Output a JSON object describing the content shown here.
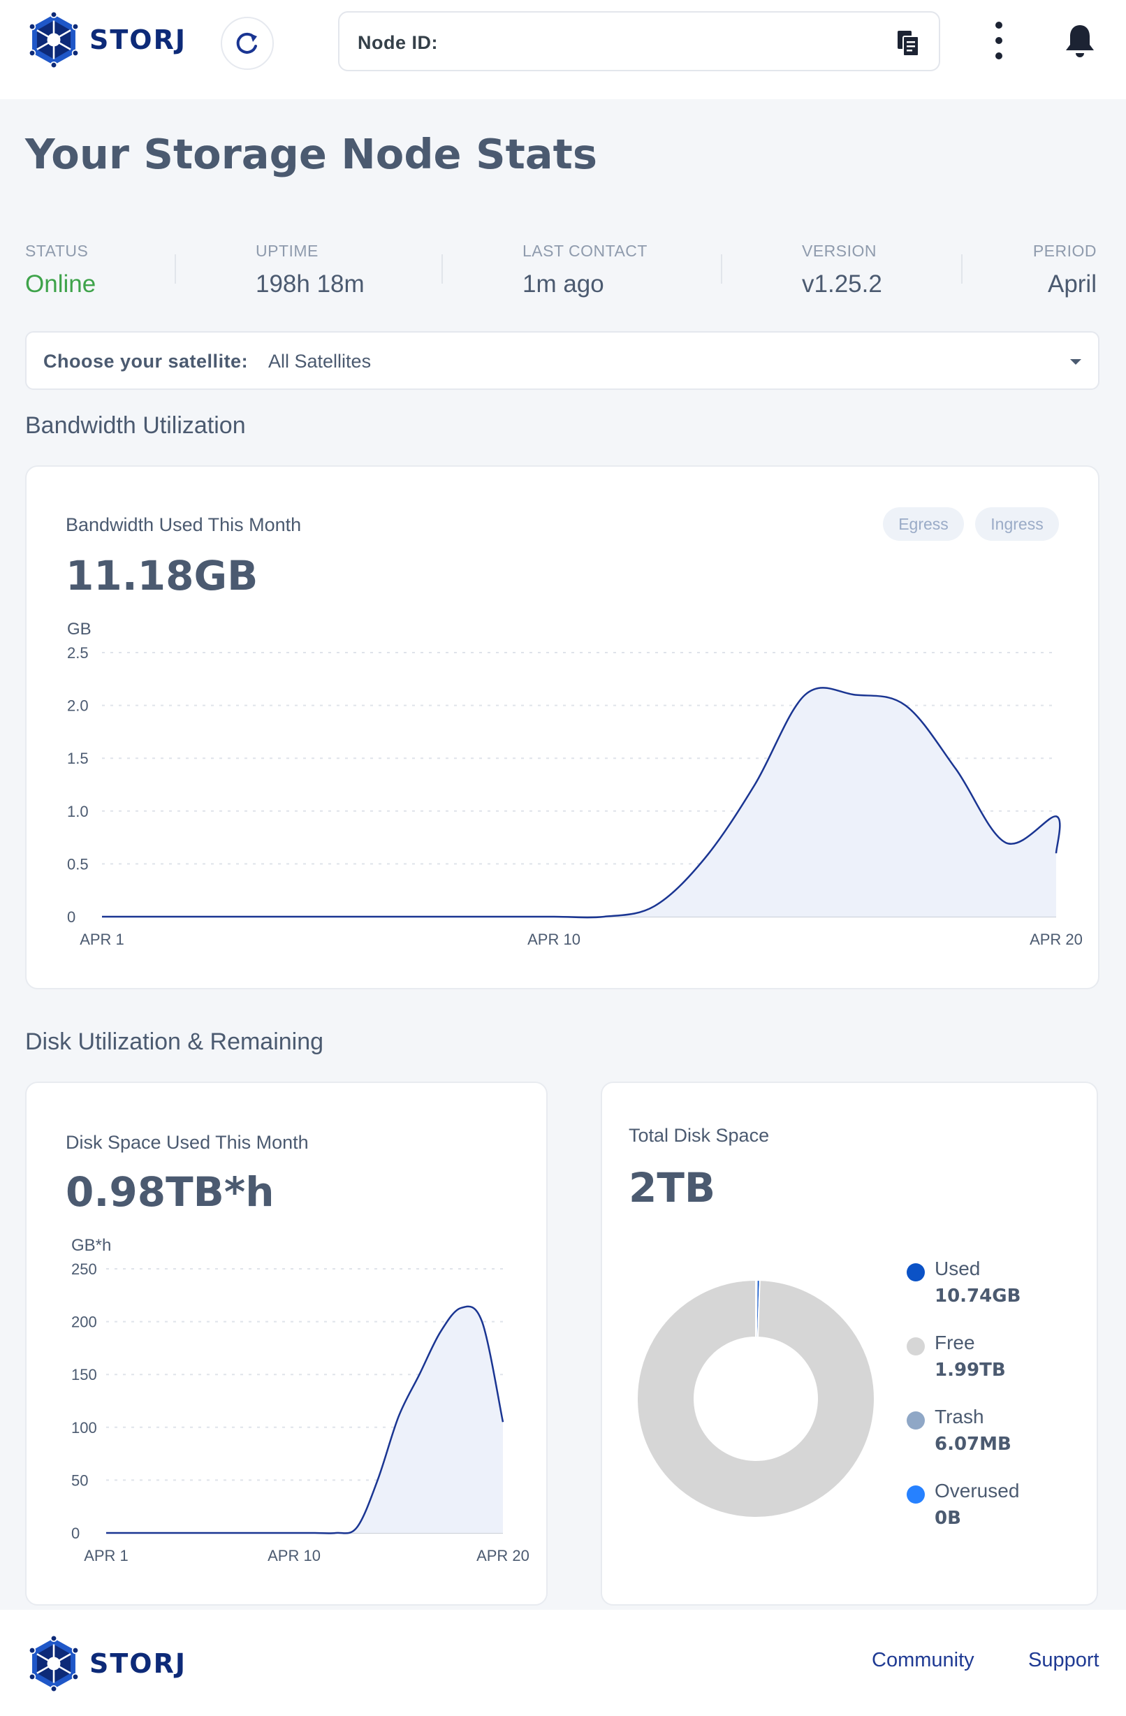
{
  "header": {
    "logo_text": "STORJ",
    "node_id_label": "Node ID:",
    "icons": [
      "storj-logo-icon",
      "refresh-icon",
      "copy-icon",
      "more-vertical-icon",
      "bell-icon"
    ]
  },
  "page_title": "Your Storage Node Stats",
  "info": {
    "status": {
      "label": "STATUS",
      "value": "Online"
    },
    "uptime": {
      "label": "UPTIME",
      "value": "198h 18m"
    },
    "last_contact": {
      "label": "LAST CONTACT",
      "value": "1m ago"
    },
    "version": {
      "label": "VERSION",
      "value": "v1.25.2"
    },
    "period": {
      "label": "PERIOD",
      "value": "April"
    }
  },
  "satellite": {
    "label": "Choose your satellite:",
    "value": "All Satellites"
  },
  "sections": {
    "bandwidth": "Bandwidth Utilization",
    "disk": "Disk Utilization & Remaining"
  },
  "bandwidth_card": {
    "title": "Bandwidth Used This Month",
    "value": "11.18GB",
    "egress_label": "Egress",
    "ingress_label": "Ingress"
  },
  "disk_card": {
    "title": "Disk Space Used This Month",
    "value": "0.98TB*h"
  },
  "total_card": {
    "title": "Total Disk Space",
    "value": "2TB",
    "legend": [
      {
        "name": "Used",
        "amount": "10.74GB"
      },
      {
        "name": "Free",
        "amount": "1.99TB"
      },
      {
        "name": "Trash",
        "amount": "6.07MB"
      },
      {
        "name": "Overused",
        "amount": "0B"
      }
    ]
  },
  "colors": {
    "accent": "#0d2a78",
    "online": "#3ea34a",
    "used": "#0b52c6",
    "free": "#d6d6d6",
    "trash": "#8fa7c6",
    "overused": "#2681ff",
    "line": "#1a3592",
    "area": "#edf1fa"
  },
  "footer": {
    "logo_text": "STORJ",
    "community": "Community",
    "support": "Support"
  },
  "chart_data": [
    {
      "type": "area",
      "ylabel": "GB",
      "ylim": [
        0,
        2.5
      ],
      "yticks": [
        "0",
        "0.5",
        "1.0",
        "1.5",
        "2.0",
        "2.5"
      ],
      "xtick_labels": [
        "APR 1",
        "APR 10",
        "APR 20"
      ],
      "x": [
        1,
        2,
        3,
        4,
        5,
        6,
        7,
        8,
        9,
        10,
        11,
        12,
        13,
        14,
        15,
        16,
        17,
        18,
        19,
        20
      ],
      "values": [
        0,
        0,
        0,
        0,
        0,
        0,
        0,
        0,
        0,
        0,
        0,
        0.1,
        0.55,
        1.25,
        2.1,
        2.1,
        2.0,
        1.4,
        0.7,
        0.95
      ],
      "end_value": 0.6,
      "grid": true
    },
    {
      "type": "area",
      "ylabel": "GB*h",
      "ylim": [
        0,
        250
      ],
      "yticks": [
        "0",
        "50",
        "100",
        "150",
        "200",
        "250"
      ],
      "xtick_labels": [
        "APR 1",
        "APR 10",
        "APR 20"
      ],
      "x": [
        1,
        2,
        3,
        4,
        5,
        6,
        7,
        8,
        9,
        10,
        11,
        12,
        13,
        14,
        15,
        16,
        17,
        18,
        19,
        20
      ],
      "values": [
        0,
        0,
        0,
        0,
        0,
        0,
        0,
        0,
        0,
        0,
        0,
        0,
        5,
        50,
        110,
        150,
        190,
        213,
        200,
        105
      ],
      "grid": true
    },
    {
      "type": "pie",
      "labels": [
        "Used",
        "Free",
        "Trash",
        "Overused"
      ],
      "values": [
        10.74,
        1990,
        0.006,
        0
      ]
    }
  ]
}
